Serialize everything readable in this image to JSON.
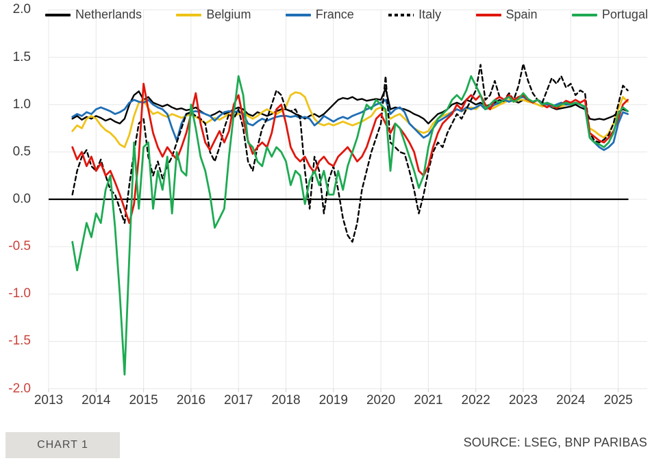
{
  "footer": {
    "chart_label": "CHART 1",
    "source": "SOURCE: LSEG, BNP PARIBAS"
  },
  "colors": {
    "grid": "#e7e7e7",
    "zero_line": "#000000",
    "tick_mark": "#cfcfcf",
    "tick_label": "#3a3a3a",
    "tick_label_negative": "#cb423b",
    "legend_label": "#3d3d3d",
    "source_text": "#3d3d3d",
    "chart_tag_bg": "#e2e0dd",
    "chart_tag_text": "#4d4d4d"
  },
  "chart_data": {
    "type": "line",
    "title": "",
    "xlabel": "",
    "ylabel": "",
    "grid": true,
    "legend_position": "top",
    "ylim": [
      -2.0,
      2.0
    ],
    "ytick_step": 0.5,
    "yticks": [
      "2.0",
      "1.5",
      "1.0",
      "0.5",
      "0.0",
      "-0.5",
      "-1.0",
      "-1.5",
      "-2.0"
    ],
    "xticks": [
      "2013",
      "2014",
      "2015",
      "2016",
      "2017",
      "2018",
      "2019",
      "2020",
      "2021",
      "2022",
      "2023",
      "2024",
      "2025"
    ],
    "x": {
      "start": 2013.5,
      "step": 0.1,
      "count": 118
    },
    "series": [
      {
        "name": "Netherlands",
        "color": "#000000",
        "dash": false,
        "values": [
          0.85,
          0.88,
          0.84,
          0.87,
          0.85,
          0.88,
          0.86,
          0.83,
          0.85,
          0.82,
          0.8,
          0.85,
          1.0,
          1.1,
          1.14,
          1.05,
          1.08,
          1.02,
          1.0,
          0.98,
          1.0,
          0.97,
          0.95,
          0.96,
          0.94,
          0.95,
          0.97,
          0.93,
          0.9,
          0.88,
          0.9,
          0.93,
          0.9,
          0.92,
          0.95,
          0.97,
          0.95,
          0.9,
          0.88,
          0.92,
          0.9,
          0.88,
          0.9,
          0.93,
          0.95,
          0.95,
          0.93,
          0.9,
          0.88,
          0.85,
          0.88,
          0.9,
          0.87,
          0.9,
          0.95,
          1.0,
          1.05,
          1.07,
          1.06,
          1.08,
          1.05,
          1.06,
          1.04,
          1.05,
          1.06,
          1.05,
          1.17,
          0.95,
          0.97,
          0.96,
          0.95,
          0.93,
          0.9,
          0.88,
          0.85,
          0.8,
          0.85,
          0.9,
          0.92,
          0.95,
          1.0,
          1.02,
          1.0,
          1.05,
          1.03,
          1.0,
          1.02,
          0.98,
          1.0,
          1.02,
          1.05,
          1.03,
          1.05,
          1.04,
          1.02,
          1.05,
          1.04,
          1.02,
          1.0,
          0.98,
          1.0,
          0.97,
          0.95,
          0.96,
          0.97,
          0.98,
          1.0,
          0.97,
          0.95,
          0.85,
          0.84,
          0.85,
          0.84,
          0.86,
          0.88,
          0.92,
          0.95,
          0.93
        ]
      },
      {
        "name": "Belgium",
        "color": "#efc318",
        "dash": false,
        "values": [
          0.72,
          0.78,
          0.75,
          0.85,
          0.88,
          0.85,
          0.78,
          0.73,
          0.7,
          0.65,
          0.58,
          0.55,
          0.68,
          0.88,
          1.02,
          1.05,
          0.96,
          0.9,
          0.92,
          0.89,
          0.87,
          0.9,
          0.88,
          0.86,
          0.88,
          0.9,
          0.87,
          0.84,
          0.8,
          0.83,
          0.86,
          0.84,
          0.87,
          0.9,
          0.88,
          0.9,
          0.92,
          0.88,
          0.85,
          0.88,
          0.92,
          0.95,
          0.92,
          0.9,
          0.93,
          0.98,
          1.1,
          1.13,
          1.12,
          1.08,
          0.95,
          0.85,
          0.8,
          0.78,
          0.8,
          0.78,
          0.8,
          0.82,
          0.8,
          0.78,
          0.8,
          0.82,
          0.85,
          0.88,
          0.95,
          0.97,
          0.92,
          0.85,
          0.88,
          0.9,
          0.85,
          0.8,
          0.75,
          0.72,
          0.7,
          0.72,
          0.8,
          0.85,
          0.88,
          0.9,
          0.92,
          0.95,
          0.93,
          0.95,
          0.97,
          0.95,
          1.0,
          0.97,
          0.95,
          0.97,
          1.0,
          1.02,
          1.05,
          1.03,
          1.05,
          1.05,
          1.03,
          1.02,
          1.0,
          0.98,
          1.0,
          0.98,
          0.97,
          0.98,
          1.0,
          1.0,
          1.02,
          1.0,
          0.98,
          0.75,
          0.72,
          0.68,
          0.65,
          0.7,
          0.8,
          0.95,
          1.08,
          1.03
        ]
      },
      {
        "name": "France",
        "color": "#1f6eb4",
        "dash": false,
        "values": [
          0.87,
          0.9,
          0.88,
          0.92,
          0.9,
          0.95,
          0.97,
          0.95,
          0.93,
          0.9,
          0.92,
          0.95,
          1.02,
          1.05,
          1.03,
          1.02,
          1.05,
          1.0,
          0.97,
          0.95,
          0.9,
          0.75,
          0.62,
          0.8,
          0.9,
          0.92,
          0.93,
          0.92,
          0.9,
          0.88,
          0.83,
          0.88,
          0.92,
          0.93,
          0.92,
          0.93,
          0.9,
          0.8,
          0.78,
          0.82,
          0.85,
          0.83,
          0.85,
          0.87,
          0.88,
          0.88,
          0.87,
          0.88,
          0.86,
          0.87,
          0.85,
          0.78,
          0.82,
          0.88,
          0.85,
          0.82,
          0.85,
          0.87,
          0.85,
          0.88,
          0.9,
          0.92,
          0.95,
          0.97,
          1.0,
          1.02,
          1.05,
          0.9,
          0.95,
          0.97,
          0.92,
          0.8,
          0.75,
          0.7,
          0.65,
          0.68,
          0.75,
          0.82,
          0.85,
          0.88,
          0.92,
          0.95,
          0.93,
          0.97,
          0.95,
          0.97,
          1.0,
          0.95,
          0.97,
          1.0,
          1.02,
          1.05,
          1.03,
          1.05,
          1.07,
          1.08,
          1.05,
          1.03,
          1.05,
          1.02,
          1.0,
          0.98,
          1.0,
          1.02,
          1.0,
          1.0,
          1.02,
          1.0,
          0.97,
          0.65,
          0.6,
          0.55,
          0.52,
          0.55,
          0.6,
          0.8,
          0.92,
          0.9
        ]
      },
      {
        "name": "Italy",
        "color": "#000000",
        "dash": true,
        "values": [
          0.05,
          0.3,
          0.45,
          0.52,
          0.35,
          0.3,
          0.42,
          0.25,
          0.1,
          0.05,
          -0.1,
          -0.25,
          0.15,
          0.5,
          0.8,
          0.85,
          0.45,
          0.25,
          0.4,
          0.22,
          0.35,
          0.45,
          0.6,
          0.75,
          0.9,
          0.92,
          0.88,
          0.85,
          0.8,
          0.5,
          0.4,
          0.55,
          0.75,
          0.9,
          0.85,
          0.95,
          0.75,
          0.4,
          0.3,
          0.55,
          0.75,
          0.85,
          1.0,
          1.15,
          1.1,
          0.95,
          0.93,
          0.95,
          0.85,
          0.3,
          -0.1,
          0.45,
          0.3,
          -0.15,
          0.2,
          0.35,
          0.1,
          -0.2,
          -0.38,
          -0.45,
          -0.25,
          0.1,
          0.3,
          0.5,
          0.65,
          0.8,
          1.3,
          0.6,
          0.55,
          0.5,
          0.48,
          0.3,
          0.1,
          -0.15,
          0.05,
          0.3,
          0.5,
          0.6,
          0.55,
          0.7,
          0.8,
          0.9,
          0.85,
          0.95,
          1.05,
          1.15,
          1.42,
          1.05,
          1.1,
          1.25,
          1.08,
          1.05,
          1.12,
          1.05,
          1.2,
          1.43,
          1.25,
          1.12,
          1.05,
          1.02,
          1.15,
          1.28,
          1.22,
          1.3,
          1.18,
          1.22,
          1.1,
          1.15,
          1.12,
          0.7,
          0.62,
          0.6,
          0.63,
          0.68,
          0.8,
          1.0,
          1.2,
          1.15
        ]
      },
      {
        "name": "Spain",
        "color": "#e0160c",
        "dash": false,
        "values": [
          0.55,
          0.42,
          0.5,
          0.35,
          0.45,
          0.3,
          0.38,
          0.25,
          0.3,
          0.18,
          0.05,
          -0.1,
          -0.25,
          -0.05,
          0.45,
          1.22,
          0.95,
          0.7,
          0.55,
          0.45,
          0.55,
          0.48,
          0.42,
          0.55,
          0.7,
          0.9,
          1.12,
          0.8,
          0.6,
          0.52,
          0.62,
          0.72,
          0.6,
          0.72,
          1.0,
          1.1,
          0.85,
          0.62,
          0.48,
          0.55,
          0.6,
          0.55,
          0.7,
          0.95,
          1.0,
          0.8,
          0.55,
          0.45,
          0.4,
          0.45,
          0.35,
          0.28,
          0.4,
          0.45,
          0.38,
          0.35,
          0.45,
          0.5,
          0.55,
          0.48,
          0.4,
          0.45,
          0.55,
          0.7,
          0.85,
          0.9,
          0.8,
          0.7,
          0.8,
          0.75,
          0.68,
          0.6,
          0.5,
          0.3,
          0.25,
          0.35,
          0.55,
          0.7,
          0.8,
          0.85,
          0.9,
          1.0,
          0.95,
          1.05,
          1.1,
          1.05,
          1.1,
          1.0,
          0.95,
          1.05,
          1.08,
          1.05,
          1.1,
          1.05,
          1.08,
          1.1,
          1.05,
          1.02,
          1.05,
          1.0,
          0.97,
          1.0,
          0.96,
          1.0,
          1.04,
          1.02,
          1.05,
          1.02,
          1.05,
          0.7,
          0.66,
          0.62,
          0.6,
          0.65,
          0.72,
          0.85,
          1.0,
          1.05
        ]
      },
      {
        "name": "Portugal",
        "color": "#1daa52",
        "dash": false,
        "values": [
          -0.45,
          -0.75,
          -0.5,
          -0.25,
          -0.4,
          -0.15,
          -0.25,
          0.1,
          0.25,
          -0.3,
          -1.0,
          -1.85,
          -0.6,
          0.6,
          -0.1,
          0.55,
          0.6,
          -0.1,
          0.3,
          0.1,
          0.45,
          -0.15,
          0.5,
          0.3,
          0.25,
          1.0,
          0.75,
          0.45,
          0.3,
          0.05,
          -0.3,
          -0.2,
          -0.1,
          0.45,
          0.9,
          1.3,
          1.1,
          0.6,
          0.55,
          0.4,
          0.35,
          0.55,
          0.45,
          0.55,
          0.5,
          0.4,
          0.15,
          0.3,
          0.25,
          -0.05,
          0.2,
          0.3,
          0.15,
          0.3,
          0.05,
          0.05,
          0.3,
          0.1,
          0.35,
          0.5,
          0.65,
          0.85,
          1.0,
          0.95,
          1.05,
          1.0,
          0.95,
          0.3,
          0.8,
          0.75,
          0.6,
          0.45,
          0.3,
          0.12,
          0.25,
          0.55,
          0.75,
          0.85,
          0.9,
          0.95,
          1.05,
          1.1,
          1.05,
          1.15,
          1.3,
          1.2,
          1.1,
          0.95,
          1.0,
          1.05,
          1.02,
          1.05,
          1.08,
          1.03,
          1.06,
          1.12,
          1.06,
          1.03,
          1.05,
          1.0,
          1.02,
          1.0,
          0.98,
          1.0,
          1.02,
          1.0,
          1.02,
          1.0,
          0.98,
          0.65,
          0.6,
          0.58,
          0.55,
          0.6,
          0.7,
          0.9,
          0.97,
          0.93
        ]
      }
    ]
  }
}
